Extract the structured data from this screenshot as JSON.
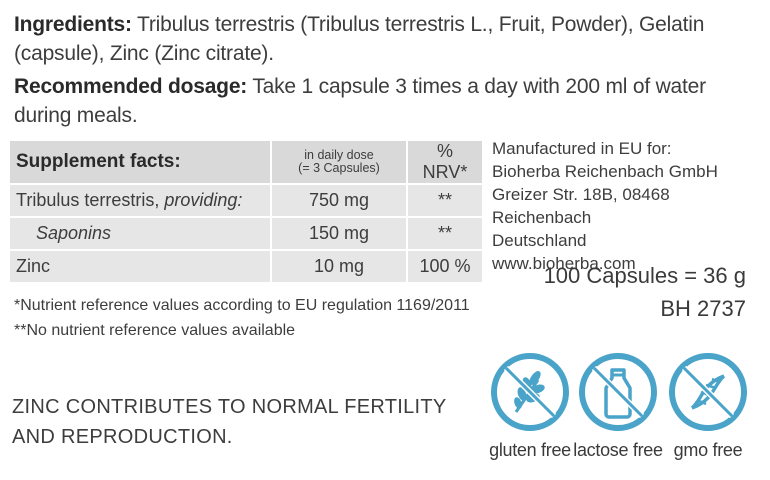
{
  "ingredients": {
    "label": "Ingredients:",
    "text": " Tribulus terrestris (Tribulus terrestris L., Fruit, Powder), Gelatin (capsule), Zinc (Zinc citrate)."
  },
  "dosage": {
    "label": "Recommended dosage:",
    "text": " Take 1 capsule 3 times a day with 200 ml of water during meals."
  },
  "facts": {
    "title": "Supplement facts:",
    "dose_header_1": "in daily dose",
    "dose_header_2": "(= 3 Capsules)",
    "nrv_header": "% NRV*",
    "rows": [
      {
        "name_main": "Tribulus terrestris, ",
        "name_italic": "providing:",
        "value": "750 mg",
        "nrv": "**"
      },
      {
        "name": "Saponins",
        "value": "150 mg",
        "nrv": "**"
      },
      {
        "name": "Zinc",
        "value": "10 mg",
        "nrv": "100 %"
      }
    ]
  },
  "manufacturer": {
    "line1": "Manufactured in EU for:",
    "line2": "Bioherba Reichenbach GmbH",
    "line3": "Greizer Str. 18B, 08468 Reichenbach",
    "line4": "Deutschland",
    "line5": "www.bioherba.com"
  },
  "package": {
    "quantity": "100 Capsules = 36 g",
    "code": "BH 2737"
  },
  "notes": {
    "nrv_note": "*Nutrient reference values according to EU regulation 1169/2011",
    "no_nrv_note": "**No nutrient reference values available"
  },
  "claim": {
    "line1": "ZINC CONTRIBUTES TO NORMAL FERTILITY",
    "line2": "AND REPRODUCTION."
  },
  "badges": {
    "gluten": {
      "label": "gluten free",
      "icon": "wheat-crossed-icon"
    },
    "lactose": {
      "label": "lactose free",
      "icon": "milk-bottle-crossed-icon"
    },
    "gmo": {
      "label": "gmo free",
      "icon": "dna-crossed-icon"
    },
    "color": "#4aa3c8"
  }
}
